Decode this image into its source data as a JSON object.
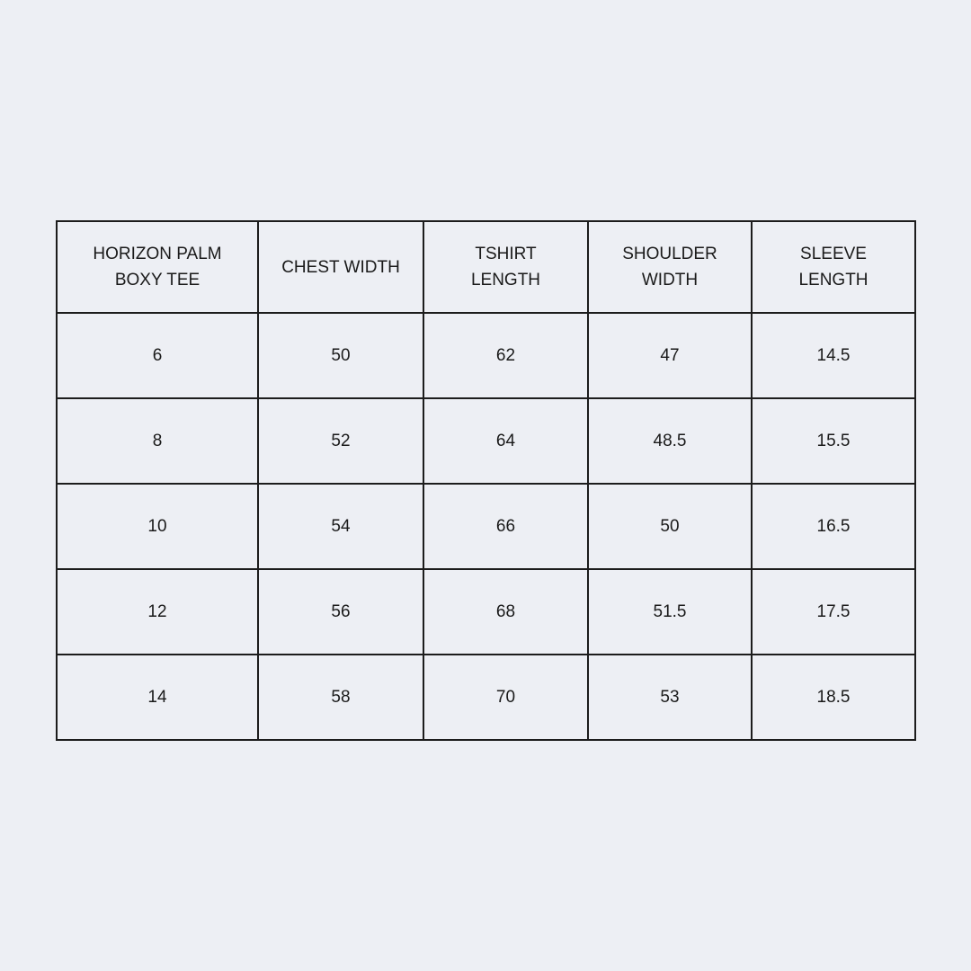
{
  "page": {
    "background_color": "#edeff4",
    "text_color": "#1a1a1a",
    "border_color": "#1c1c1c"
  },
  "table": {
    "header_cells": [
      {
        "lines": [
          "HORIZON PALM",
          "BOXY TEE"
        ]
      },
      {
        "lines": [
          "CHEST WIDTH"
        ]
      },
      {
        "lines": [
          "TSHIRT",
          "LENGTH"
        ]
      },
      {
        "lines": [
          "SHOULDER",
          "WIDTH"
        ]
      },
      {
        "lines": [
          "SLEEVE",
          "LENGTH"
        ]
      }
    ],
    "rows": [
      {
        "size": "6",
        "chest_width": "50",
        "tshirt_length": "62",
        "shoulder_width": "47",
        "sleeve_length": "14.5"
      },
      {
        "size": "8",
        "chest_width": "52",
        "tshirt_length": "64",
        "shoulder_width": "48.5",
        "sleeve_length": "15.5"
      },
      {
        "size": "10",
        "chest_width": "54",
        "tshirt_length": "66",
        "shoulder_width": "50",
        "sleeve_length": "16.5"
      },
      {
        "size": "12",
        "chest_width": "56",
        "tshirt_length": "68",
        "shoulder_width": "51.5",
        "sleeve_length": "17.5"
      },
      {
        "size": "14",
        "chest_width": "58",
        "tshirt_length": "70",
        "shoulder_width": "53",
        "sleeve_length": "18.5"
      }
    ]
  },
  "chart_data": {
    "type": "table",
    "title": "HORIZON PALM BOXY TEE",
    "columns": [
      "HORIZON PALM BOXY TEE",
      "CHEST WIDTH",
      "TSHIRT LENGTH",
      "SHOULDER WIDTH",
      "SLEEVE LENGTH"
    ],
    "rows": [
      [
        "6",
        "50",
        "62",
        "47",
        "14.5"
      ],
      [
        "8",
        "52",
        "64",
        "48.5",
        "15.5"
      ],
      [
        "10",
        "54",
        "66",
        "50",
        "16.5"
      ],
      [
        "12",
        "56",
        "68",
        "51.5",
        "17.5"
      ],
      [
        "14",
        "58",
        "70",
        "53",
        "18.5"
      ]
    ]
  }
}
